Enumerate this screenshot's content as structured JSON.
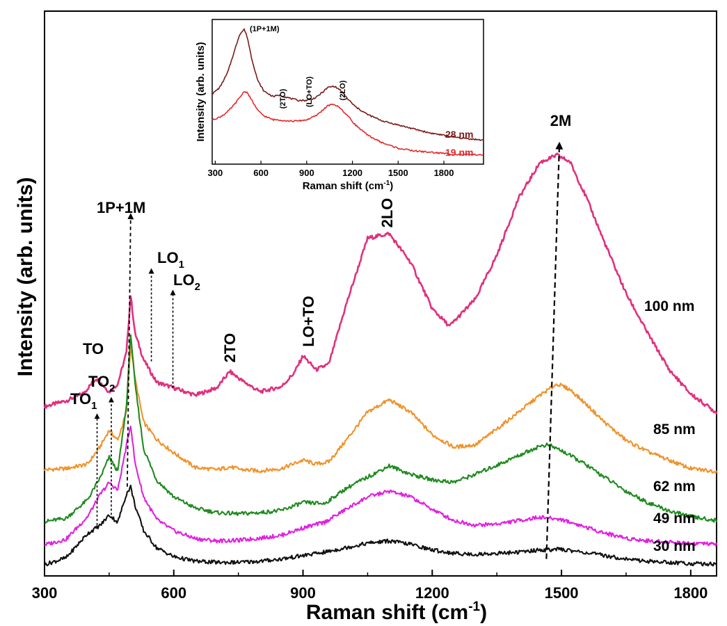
{
  "chart_data": [
    {
      "type": "line",
      "xlabel": "Raman shift (cm",
      "xlabel_sup": "-1",
      "xlabel_end": ")",
      "ylabel": "Intensity (arb. units)",
      "xlim": [
        300,
        1860
      ],
      "ylim": [
        0,
        1
      ],
      "x_ticks": [
        "300",
        "600",
        "900",
        "1200",
        "1500",
        "1800"
      ],
      "grid": false,
      "y_tick_labels_shown": false,
      "series": [
        {
          "name": "100 nm",
          "color": "#e0307e",
          "baseline": 0.3,
          "values_x": [
            300,
            350,
            390,
            420,
            450,
            470,
            490,
            500,
            510,
            530,
            560,
            600,
            650,
            700,
            730,
            760,
            800,
            850,
            880,
            900,
            930,
            960,
            1000,
            1050,
            1100,
            1150,
            1200,
            1240,
            1300,
            1350,
            1400,
            1450,
            1490,
            1520,
            1560,
            1600,
            1650,
            1700,
            1750,
            1800,
            1860
          ],
          "values_y": [
            0.3,
            0.31,
            0.323,
            0.35,
            0.326,
            0.34,
            0.395,
            0.497,
            0.43,
            0.383,
            0.343,
            0.333,
            0.32,
            0.333,
            0.362,
            0.345,
            0.326,
            0.335,
            0.36,
            0.39,
            0.365,
            0.375,
            0.48,
            0.598,
            0.606,
            0.555,
            0.473,
            0.442,
            0.49,
            0.568,
            0.668,
            0.732,
            0.745,
            0.733,
            0.666,
            0.59,
            0.5,
            0.43,
            0.365,
            0.322,
            0.289
          ]
        },
        {
          "name": "85 nm",
          "color": "#f0922a",
          "baseline": 0.188,
          "values_x": [
            300,
            350,
            400,
            430,
            450,
            470,
            490,
            500,
            510,
            530,
            560,
            600,
            650,
            700,
            730,
            760,
            800,
            850,
            900,
            930,
            960,
            1000,
            1050,
            1100,
            1150,
            1200,
            1250,
            1300,
            1350,
            1400,
            1450,
            1490,
            1520,
            1560,
            1600,
            1650,
            1700,
            1750,
            1800,
            1860
          ],
          "values_y": [
            0.188,
            0.19,
            0.198,
            0.23,
            0.258,
            0.24,
            0.29,
            0.41,
            0.35,
            0.272,
            0.242,
            0.218,
            0.192,
            0.188,
            0.193,
            0.188,
            0.186,
            0.19,
            0.205,
            0.198,
            0.202,
            0.24,
            0.29,
            0.312,
            0.29,
            0.25,
            0.228,
            0.232,
            0.26,
            0.29,
            0.32,
            0.34,
            0.33,
            0.302,
            0.272,
            0.24,
            0.22,
            0.205,
            0.19,
            0.185
          ]
        },
        {
          "name": "62 nm",
          "color": "#1f8a1f",
          "baseline": 0.096,
          "values_x": [
            300,
            350,
            400,
            430,
            450,
            470,
            490,
            500,
            510,
            530,
            560,
            600,
            650,
            700,
            750,
            800,
            850,
            900,
            950,
            1000,
            1050,
            1100,
            1150,
            1200,
            1250,
            1300,
            1350,
            1400,
            1450,
            1470,
            1500,
            1550,
            1600,
            1650,
            1700,
            1750,
            1800,
            1860
          ],
          "values_y": [
            0.096,
            0.102,
            0.135,
            0.175,
            0.21,
            0.185,
            0.3,
            0.43,
            0.34,
            0.225,
            0.17,
            0.14,
            0.12,
            0.112,
            0.11,
            0.112,
            0.116,
            0.13,
            0.128,
            0.155,
            0.175,
            0.195,
            0.18,
            0.17,
            0.166,
            0.18,
            0.196,
            0.213,
            0.23,
            0.232,
            0.222,
            0.2,
            0.175,
            0.15,
            0.13,
            0.115,
            0.105,
            0.098
          ]
        },
        {
          "name": "49 nm",
          "color": "#e020e0",
          "baseline": 0.055,
          "values_x": [
            300,
            350,
            400,
            430,
            450,
            470,
            490,
            500,
            510,
            530,
            560,
            600,
            650,
            700,
            750,
            800,
            850,
            900,
            950,
            1000,
            1050,
            1100,
            1150,
            1200,
            1250,
            1300,
            1350,
            1400,
            1450,
            1500,
            1550,
            1600,
            1650,
            1700,
            1750,
            1800,
            1860
          ],
          "values_y": [
            0.055,
            0.065,
            0.105,
            0.145,
            0.165,
            0.152,
            0.23,
            0.268,
            0.2,
            0.14,
            0.1,
            0.08,
            0.066,
            0.062,
            0.063,
            0.067,
            0.072,
            0.085,
            0.095,
            0.118,
            0.14,
            0.15,
            0.14,
            0.118,
            0.098,
            0.09,
            0.092,
            0.098,
            0.104,
            0.1,
            0.088,
            0.076,
            0.067,
            0.062,
            0.06,
            0.058,
            0.056
          ]
        },
        {
          "name": "30 nm",
          "color": "#111111",
          "baseline": 0.02,
          "values_x": [
            300,
            350,
            400,
            430,
            450,
            470,
            490,
            500,
            510,
            530,
            560,
            600,
            650,
            700,
            750,
            800,
            850,
            900,
            950,
            1000,
            1050,
            1100,
            1150,
            1200,
            1250,
            1300,
            1350,
            1400,
            1450,
            1500,
            1550,
            1600,
            1650,
            1700,
            1750,
            1800,
            1860
          ],
          "values_y": [
            0.02,
            0.032,
            0.075,
            0.09,
            0.108,
            0.095,
            0.145,
            0.158,
            0.125,
            0.08,
            0.05,
            0.034,
            0.026,
            0.024,
            0.024,
            0.026,
            0.03,
            0.036,
            0.042,
            0.05,
            0.058,
            0.062,
            0.056,
            0.046,
            0.04,
            0.038,
            0.04,
            0.042,
            0.046,
            0.047,
            0.042,
            0.036,
            0.03,
            0.026,
            0.024,
            0.022,
            0.021
          ]
        }
      ],
      "annotations": [
        {
          "text": "TO",
          "x": 420
        },
        {
          "text": "TO",
          "sub": "1",
          "x": 420
        },
        {
          "text": "TO",
          "sub": "2",
          "x": 455
        },
        {
          "text": "1P+1M",
          "x": 500
        },
        {
          "text": "LO",
          "sub": "1",
          "x": 550
        },
        {
          "text": "LO",
          "sub": "2",
          "x": 600
        },
        {
          "text": "2TO",
          "x": 730
        },
        {
          "text": "LO+TO",
          "x": 905
        },
        {
          "text": "2LO",
          "x": 1095
        },
        {
          "text": "2M",
          "x": 1490
        }
      ]
    },
    {
      "type": "line",
      "xlabel": "Raman shift (cm",
      "xlabel_sup": "-1",
      "xlabel_end": ")",
      "ylabel": "Intensity (arb. units)",
      "xlim": [
        280,
        2060
      ],
      "ylim": [
        0,
        1
      ],
      "x_ticks": [
        "300",
        "600",
        "900",
        "1200",
        "1500",
        "1800"
      ],
      "grid": false,
      "series": [
        {
          "name": "28 nm",
          "color": "#7a1a1a",
          "values_x": [
            280,
            330,
            380,
            420,
            460,
            490,
            510,
            540,
            580,
            620,
            680,
            720,
            780,
            840,
            900,
            960,
            1000,
            1040,
            1080,
            1120,
            1170,
            1220,
            1300,
            1400,
            1500,
            1600,
            1700,
            1800,
            1900,
            2000,
            2060
          ],
          "values_y": [
            0.5,
            0.55,
            0.66,
            0.81,
            0.96,
            1.0,
            0.94,
            0.77,
            0.6,
            0.52,
            0.48,
            0.49,
            0.47,
            0.45,
            0.45,
            0.47,
            0.51,
            0.55,
            0.56,
            0.53,
            0.46,
            0.4,
            0.34,
            0.29,
            0.26,
            0.23,
            0.2,
            0.18,
            0.16,
            0.15,
            0.14
          ]
        },
        {
          "name": "19 nm",
          "color": "#e02a2a",
          "values_x": [
            280,
            330,
            380,
            420,
            460,
            490,
            510,
            540,
            580,
            620,
            680,
            720,
            780,
            840,
            900,
            960,
            1000,
            1040,
            1080,
            1120,
            1170,
            1220,
            1300,
            1400,
            1500,
            1600,
            1700,
            1800,
            1900,
            2000,
            2060
          ],
          "values_y": [
            0.3,
            0.32,
            0.36,
            0.41,
            0.47,
            0.52,
            0.51,
            0.45,
            0.37,
            0.33,
            0.3,
            0.3,
            0.29,
            0.29,
            0.3,
            0.33,
            0.37,
            0.41,
            0.42,
            0.39,
            0.33,
            0.26,
            0.18,
            0.12,
            0.08,
            0.06,
            0.05,
            0.04,
            0.03,
            0.03,
            0.03
          ]
        }
      ],
      "annotations": [
        {
          "text": "(1P+1M)",
          "x": 500
        },
        {
          "text": "(2TO)",
          "x": 700
        },
        {
          "text": "(LO+TO)",
          "x": 860
        },
        {
          "text": "(2LO)",
          "x": 1075
        }
      ]
    }
  ]
}
